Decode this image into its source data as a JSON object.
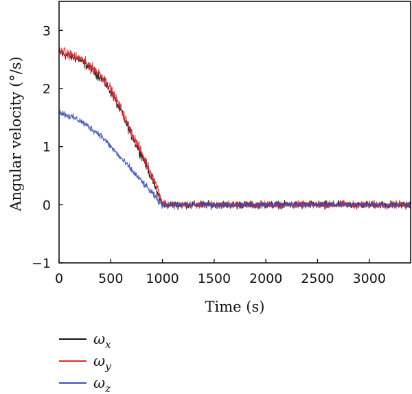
{
  "chart_data": {
    "type": "line",
    "title": "",
    "xlabel": "Time (s)",
    "ylabel": "Angular velocity (°/s)",
    "xlim": [
      0,
      3400
    ],
    "ylim": [
      -1,
      3.5
    ],
    "xticks": [
      0,
      500,
      1000,
      1500,
      2000,
      2500,
      3000
    ],
    "yticks": [
      -1,
      0,
      1,
      2,
      3
    ],
    "xtick_labels": [
      "0",
      "500",
      "1000",
      "1500",
      "2000",
      "2500",
      "3000"
    ],
    "ytick_labels": [
      "−1",
      "0",
      "1",
      "2",
      "3"
    ],
    "grid": false,
    "legend_position": "bottom-left, below plot",
    "series": [
      {
        "name": "ωx",
        "color": "#111111",
        "x": [
          0,
          200,
          400,
          500,
          600,
          700,
          800,
          900,
          950,
          1000,
          1050,
          1500,
          2000,
          2500,
          3000,
          3400
        ],
        "values": [
          2.62,
          2.5,
          2.2,
          1.95,
          1.6,
          1.2,
          0.85,
          0.45,
          0.2,
          0.0,
          0.0,
          0.0,
          0.0,
          0.0,
          0.0,
          0.0
        ],
        "noise": 0.1
      },
      {
        "name": "ωy",
        "color": "#e8232a",
        "x": [
          0,
          200,
          400,
          500,
          600,
          700,
          800,
          900,
          950,
          1000,
          1050,
          1500,
          2000,
          2500,
          3000,
          3400
        ],
        "values": [
          2.65,
          2.52,
          2.25,
          2.0,
          1.65,
          1.25,
          0.9,
          0.5,
          0.3,
          0.05,
          0.0,
          0.0,
          0.0,
          0.0,
          0.0,
          0.0
        ],
        "noise": 0.1
      },
      {
        "name": "ωz",
        "color": "#3b4fb5",
        "x": [
          0,
          200,
          400,
          500,
          600,
          700,
          800,
          900,
          950,
          1000,
          1050,
          1500,
          2000,
          2500,
          3000,
          3400
        ],
        "values": [
          1.6,
          1.45,
          1.2,
          1.0,
          0.8,
          0.6,
          0.4,
          0.2,
          0.08,
          0.0,
          0.0,
          0.0,
          0.0,
          0.0,
          0.0,
          0.0
        ],
        "noise": 0.07
      }
    ]
  },
  "legend": {
    "items": [
      {
        "label": "ωx",
        "symbol": "ω",
        "subscript": "x",
        "color": "#111111"
      },
      {
        "label": "ωy",
        "symbol": "ω",
        "subscript": "y",
        "color": "#e8232a"
      },
      {
        "label": "ωz",
        "symbol": "ω",
        "subscript": "z",
        "color": "#3b4fb5"
      }
    ]
  }
}
